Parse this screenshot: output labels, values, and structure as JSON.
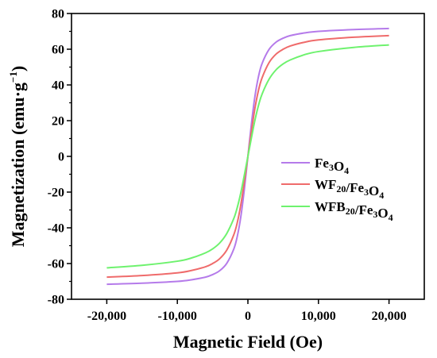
{
  "chart_data": {
    "type": "line",
    "xlabel": "Magnetic Field (Oe)",
    "ylabel": {
      "main": "Magnetization (emu·g",
      "sup": "−1",
      "close": ")"
    },
    "xlim": [
      -25000,
      25000
    ],
    "ylim": [
      -80,
      80
    ],
    "x_ticks": [
      -20000,
      -10000,
      0,
      10000,
      20000
    ],
    "x_tick_labels": [
      "-20,000",
      "-10,000",
      "0",
      "10,000",
      "20,000"
    ],
    "y_ticks": [
      -80,
      -60,
      -40,
      -20,
      0,
      20,
      40,
      60,
      80
    ],
    "y_tick_labels": [
      "-80",
      "-60",
      "-40",
      "-20",
      "0",
      "20",
      "40",
      "60",
      "80"
    ],
    "grid": false,
    "legend_position": "right",
    "x": [
      -20000,
      -15000,
      -10000,
      -8000,
      -6000,
      -5000,
      -4000,
      -3000,
      -2000,
      -1500,
      -1000,
      -500,
      0,
      500,
      1000,
      1500,
      2000,
      3000,
      4000,
      5000,
      6000,
      8000,
      10000,
      15000,
      20000
    ],
    "series": [
      {
        "name": "Fe3O4",
        "legend": [
          {
            "t": "Fe"
          },
          {
            "t": "3",
            "sub": true
          },
          {
            "t": "O"
          },
          {
            "t": "4",
            "sub": true
          }
        ],
        "color": "#b57bea",
        "values": [
          -71.6,
          -71.0,
          -70.0,
          -69.1,
          -67.6,
          -66.2,
          -64.0,
          -59.9,
          -51.9,
          -44.7,
          -33.7,
          -18.3,
          0,
          18.3,
          33.7,
          44.7,
          51.9,
          59.9,
          64.0,
          66.2,
          67.6,
          69.1,
          70.0,
          71.0,
          71.6
        ]
      },
      {
        "name": "WF20/Fe3O4",
        "legend": [
          {
            "t": "WF"
          },
          {
            "t": "20",
            "sub": true
          },
          {
            "t": "/Fe"
          },
          {
            "t": "3",
            "sub": true
          },
          {
            "t": "O"
          },
          {
            "t": "4",
            "sub": true
          }
        ],
        "color": "#ef6b6b",
        "values": [
          -67.6,
          -66.7,
          -65.2,
          -63.9,
          -61.8,
          -60.0,
          -57.3,
          -52.5,
          -43.9,
          -37.0,
          -27.0,
          -14.1,
          0,
          14.1,
          27.0,
          37.0,
          43.9,
          52.5,
          57.3,
          60.0,
          61.8,
          63.9,
          65.2,
          66.7,
          67.6
        ]
      },
      {
        "name": "WFB20/Fe3O4",
        "legend": [
          {
            "t": "WFB"
          },
          {
            "t": "20",
            "sub": true
          },
          {
            "t": "/Fe"
          },
          {
            "t": "3",
            "sub": true
          },
          {
            "t": "O"
          },
          {
            "t": "4",
            "sub": true
          }
        ],
        "color": "#6ef26e",
        "values": [
          -62.4,
          -61.0,
          -58.7,
          -56.9,
          -54.0,
          -51.8,
          -48.5,
          -43.2,
          -34.8,
          -28.5,
          -20.3,
          -10.4,
          0,
          10.4,
          20.3,
          28.5,
          34.8,
          43.2,
          48.5,
          51.8,
          54.0,
          56.9,
          58.7,
          61.0,
          62.4
        ]
      }
    ]
  }
}
